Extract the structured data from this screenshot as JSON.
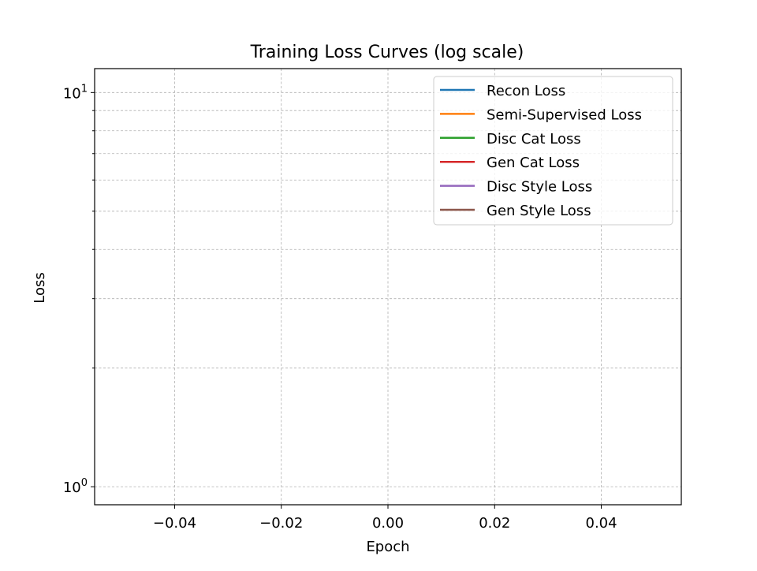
{
  "chart_data": {
    "type": "line",
    "title": "Training Loss Curves (log scale)",
    "xlabel": "Epoch",
    "ylabel": "Loss",
    "xlim": [
      -0.055,
      0.055
    ],
    "ylim": [
      0.9,
      11.5
    ],
    "yscale": "log",
    "grid": true,
    "legend_position": "upper right",
    "x_ticks": [
      {
        "value": -0.04,
        "label": "−0.04"
      },
      {
        "value": -0.02,
        "label": "−0.02"
      },
      {
        "value": 0.0,
        "label": "0.00"
      },
      {
        "value": 0.02,
        "label": "0.02"
      },
      {
        "value": 0.04,
        "label": "0.04"
      }
    ],
    "y_major_ticks": [
      {
        "value": 1,
        "base": "10",
        "exp": "0"
      },
      {
        "value": 10,
        "base": "10",
        "exp": "1"
      }
    ],
    "y_minor_ticks": [
      2,
      3,
      4,
      5,
      6,
      7,
      8,
      9
    ],
    "series": [
      {
        "name": "Recon Loss",
        "color": "#1f77b4",
        "x": [],
        "y": []
      },
      {
        "name": "Semi-Supervised Loss",
        "color": "#ff7f0e",
        "x": [],
        "y": []
      },
      {
        "name": "Disc Cat Loss",
        "color": "#2ca02c",
        "x": [],
        "y": []
      },
      {
        "name": "Gen Cat Loss",
        "color": "#d62728",
        "x": [],
        "y": []
      },
      {
        "name": "Disc Style Loss",
        "color": "#9467bd",
        "x": [],
        "y": []
      },
      {
        "name": "Gen Style Loss",
        "color": "#8c564b",
        "x": [],
        "y": []
      }
    ]
  }
}
